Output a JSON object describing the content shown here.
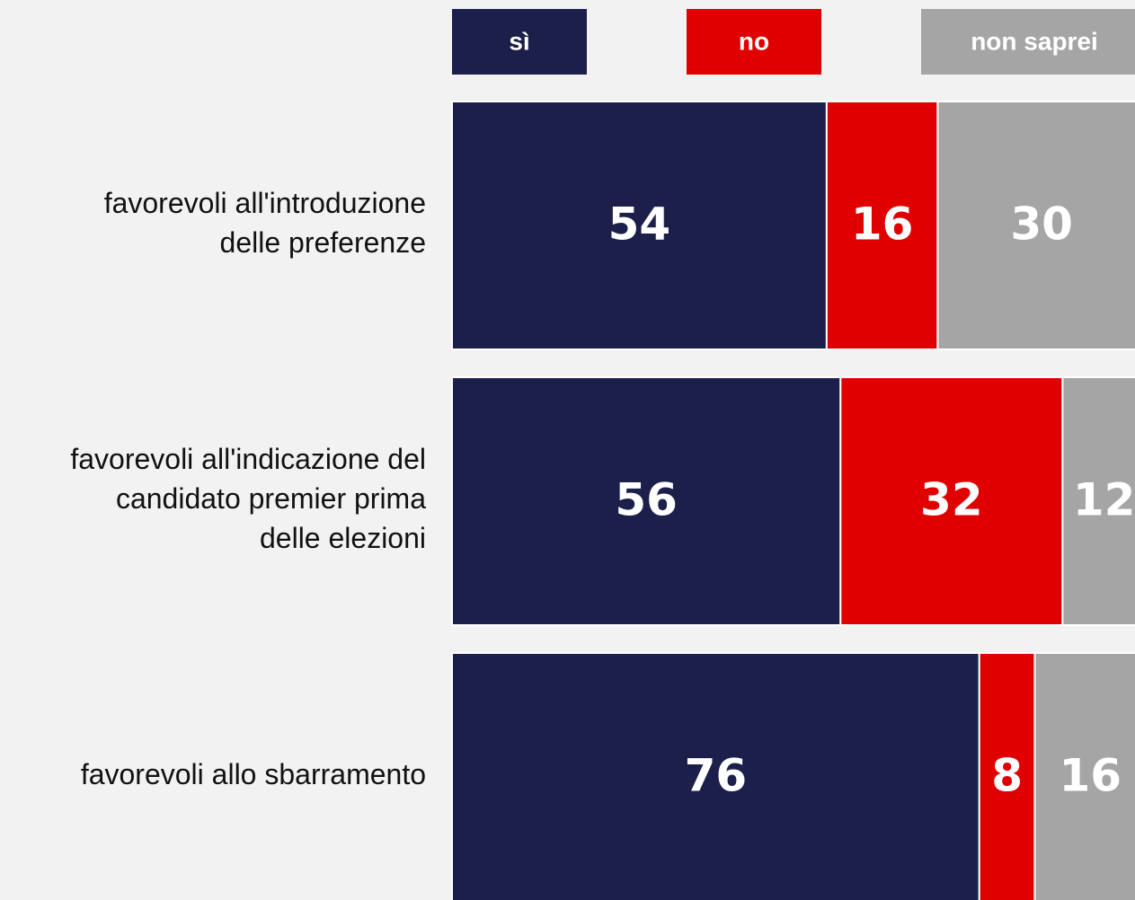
{
  "chart_data": {
    "type": "bar",
    "categories": [
      "favorevoli all'introduzione\ndelle preferenze",
      "favorevoli all'indicazione del\ncandidato premier prima\ndelle elezioni",
      "favorevoli allo sbarramento"
    ],
    "series": [
      {
        "name": "sì",
        "color": "#1c1f4a",
        "values": [
          54,
          56,
          76
        ]
      },
      {
        "name": "no",
        "color": "#e00000",
        "values": [
          16,
          32,
          8
        ]
      },
      {
        "name": "non saprei",
        "color": "#a5a5a5",
        "values": [
          30,
          12,
          16
        ]
      }
    ],
    "xlim": [
      0,
      100
    ]
  }
}
